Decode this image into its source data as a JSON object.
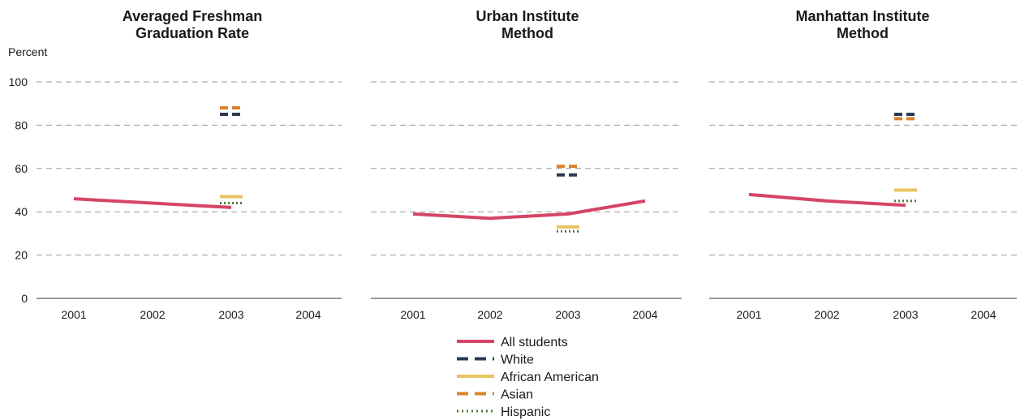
{
  "figure": {
    "ylabel": "Percent",
    "legend_title": ""
  },
  "series_styles": [
    {
      "name": "All students",
      "color": "#d64565",
      "dash": "solid",
      "width": 4
    },
    {
      "name": "White",
      "color": "#2b3a55",
      "dash": "long",
      "width": 4
    },
    {
      "name": "African American",
      "color": "#e8c462",
      "dash": "solid",
      "width": 4
    },
    {
      "name": "Asian",
      "color": "#dd8128",
      "dash": "long",
      "width": 4
    },
    {
      "name": "Hispanic",
      "color": "#4e7a35",
      "dash": "dot",
      "width": 3
    }
  ],
  "chart_data": [
    {
      "type": "line",
      "title": "Averaged Freshman Graduation Rate",
      "title_lines": [
        "Averaged Freshman",
        "Graduation Rate"
      ],
      "xlabel": "",
      "ylabel": "Percent",
      "categories": [
        "2001",
        "2002",
        "2003",
        "2004"
      ],
      "ylim": [
        0,
        100
      ],
      "yticks": [
        0,
        20,
        40,
        60,
        80,
        100
      ],
      "grid": true,
      "series": [
        {
          "name": "All students",
          "values": [
            46,
            null,
            42,
            null
          ]
        },
        {
          "name": "White",
          "values": [
            null,
            null,
            85,
            null
          ]
        },
        {
          "name": "African American",
          "values": [
            null,
            null,
            47,
            null
          ]
        },
        {
          "name": "Asian",
          "values": [
            null,
            null,
            88,
            null
          ]
        },
        {
          "name": "Hispanic",
          "values": [
            null,
            null,
            44,
            null
          ]
        }
      ]
    },
    {
      "type": "line",
      "title": "Urban Institute Method",
      "title_lines": [
        "Urban Institute",
        "Method"
      ],
      "xlabel": "",
      "ylabel": "",
      "categories": [
        "2001",
        "2002",
        "2003",
        "2004"
      ],
      "ylim": [
        0,
        100
      ],
      "yticks": [
        0,
        20,
        40,
        60,
        80,
        100
      ],
      "grid": true,
      "series": [
        {
          "name": "All students",
          "values": [
            39,
            37,
            39,
            45
          ]
        },
        {
          "name": "White",
          "values": [
            null,
            null,
            57,
            null
          ]
        },
        {
          "name": "African American",
          "values": [
            null,
            null,
            33,
            null
          ]
        },
        {
          "name": "Asian",
          "values": [
            null,
            null,
            61,
            null
          ]
        },
        {
          "name": "Hispanic",
          "values": [
            null,
            null,
            31,
            null
          ]
        }
      ]
    },
    {
      "type": "line",
      "title": "Manhattan Institute Method",
      "title_lines": [
        "Manhattan Institute",
        "Method"
      ],
      "xlabel": "",
      "ylabel": "",
      "categories": [
        "2001",
        "2002",
        "2003",
        "2004"
      ],
      "ylim": [
        0,
        100
      ],
      "yticks": [
        0,
        20,
        40,
        60,
        80,
        100
      ],
      "grid": true,
      "series": [
        {
          "name": "All students",
          "values": [
            48,
            45,
            43,
            null
          ]
        },
        {
          "name": "White",
          "values": [
            null,
            null,
            85,
            null
          ]
        },
        {
          "name": "African American",
          "values": [
            null,
            null,
            50,
            null
          ]
        },
        {
          "name": "Asian",
          "values": [
            null,
            null,
            83,
            null
          ]
        },
        {
          "name": "Hispanic",
          "values": [
            null,
            null,
            45,
            null
          ]
        }
      ]
    }
  ]
}
